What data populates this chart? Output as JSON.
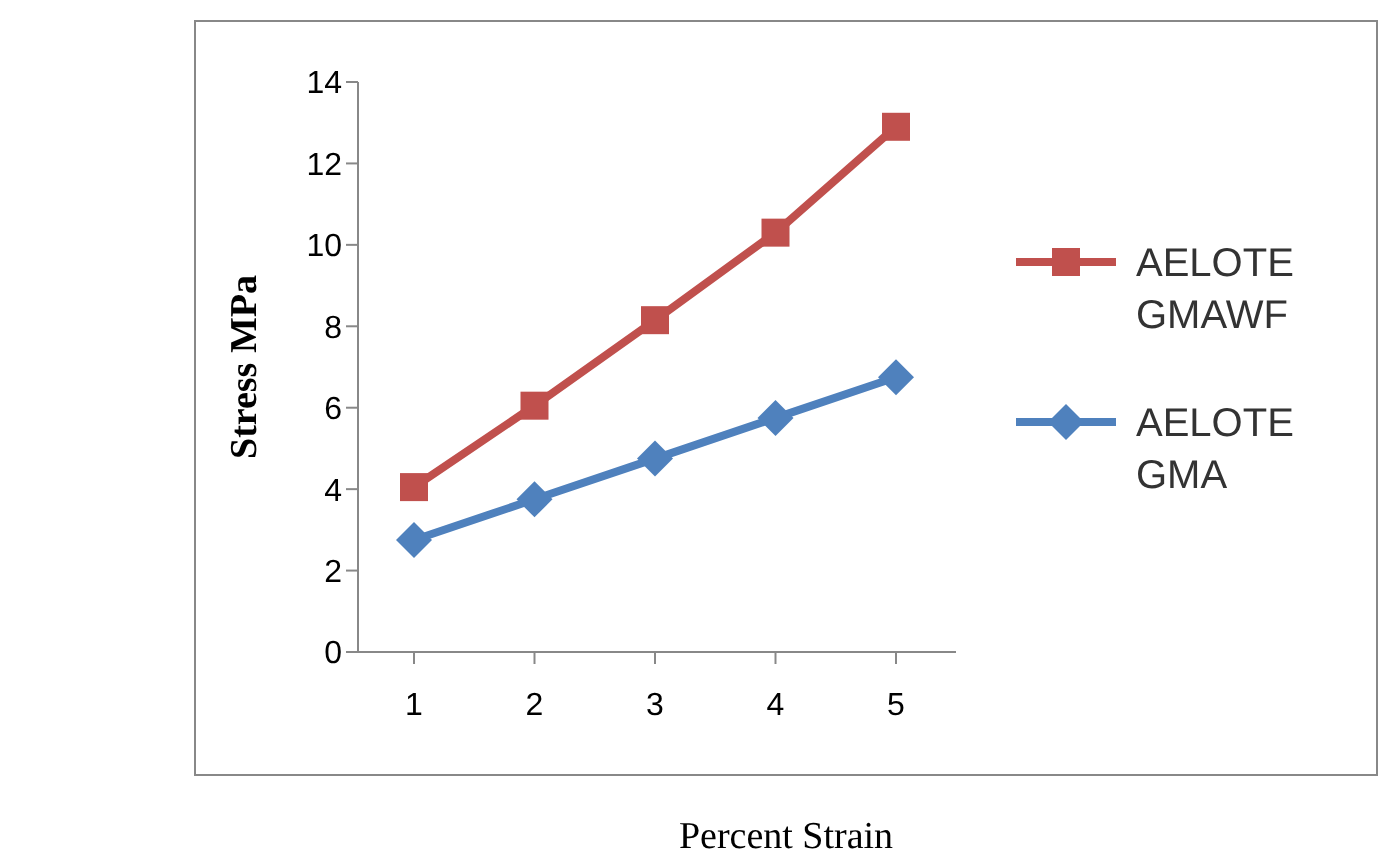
{
  "chart_data": {
    "type": "line",
    "xlabel": "Percent Strain",
    "ylabel": "Stress MPa",
    "categories": [
      "1",
      "2",
      "3",
      "4",
      "5"
    ],
    "series": [
      {
        "name": "AELOTE GMAWF",
        "color": "#c0504d",
        "marker": "square",
        "values": [
          4.05,
          6.05,
          8.15,
          10.3,
          12.9
        ]
      },
      {
        "name": "AELOTE GMA",
        "color": "#4f81bd",
        "marker": "diamond",
        "values": [
          2.75,
          3.75,
          4.75,
          5.75,
          6.75
        ]
      }
    ],
    "ylim": [
      0,
      14
    ],
    "yticks": [
      0,
      2,
      4,
      6,
      8,
      10,
      12,
      14
    ],
    "grid": false,
    "legend": "right"
  }
}
